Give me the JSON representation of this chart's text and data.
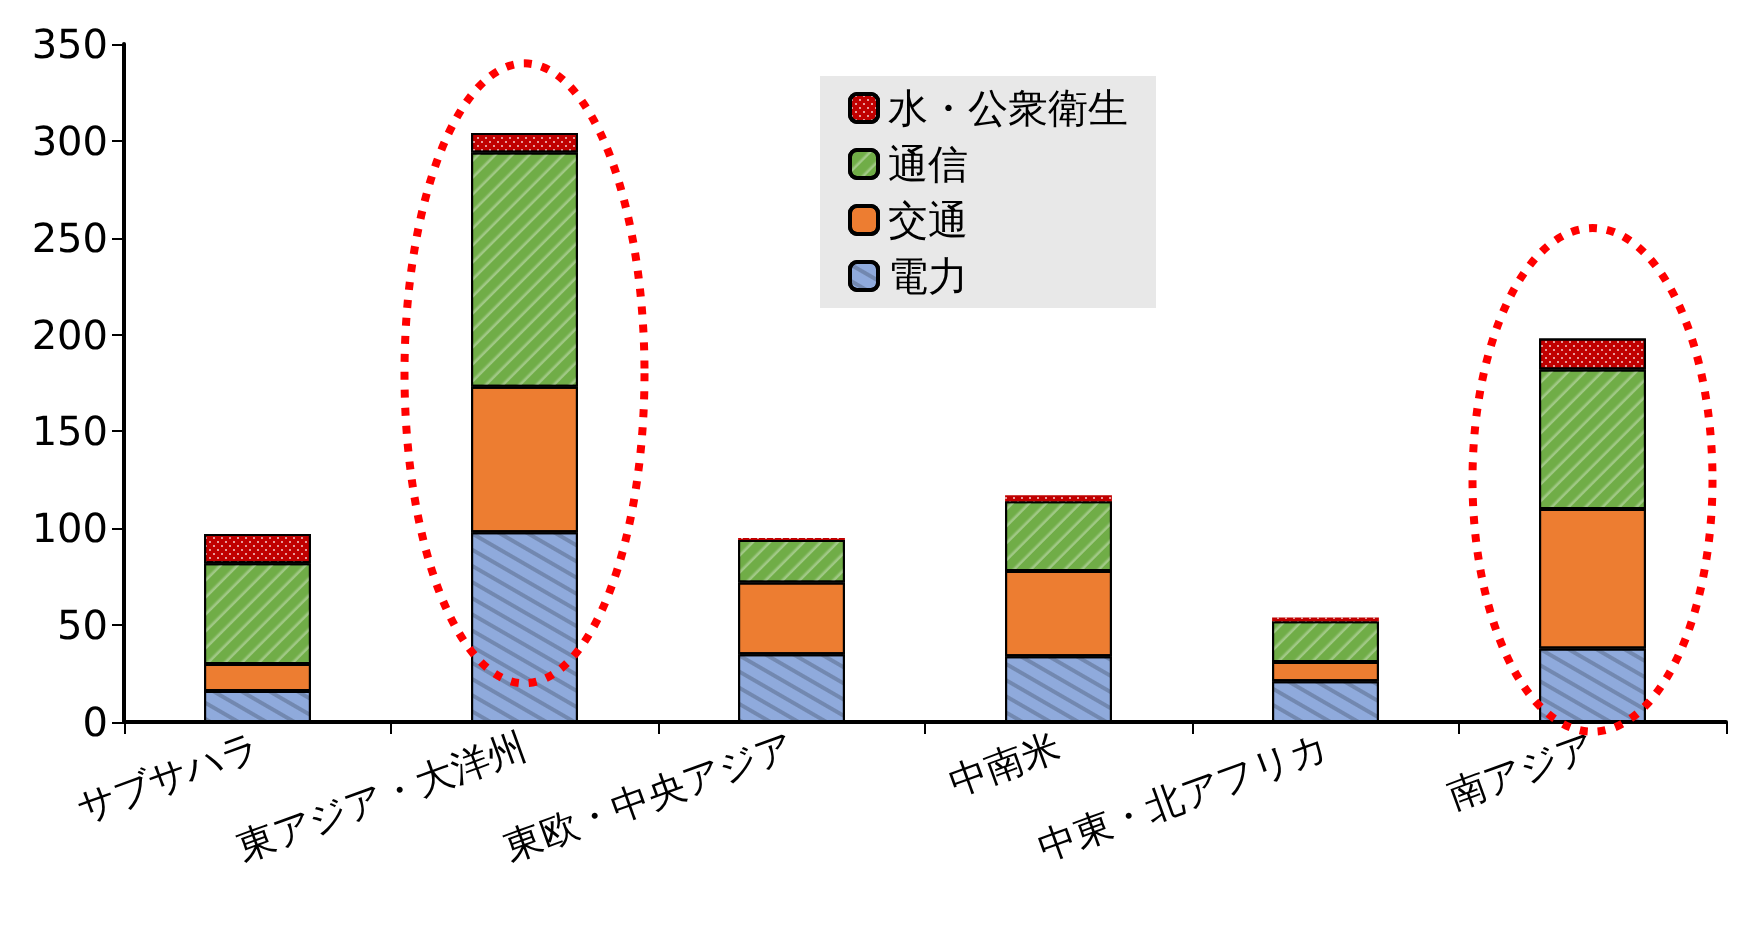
{
  "chart_data": {
    "type": "bar",
    "stacked": true,
    "categories": [
      "サブサハラ",
      "東アジア・大洋州",
      "東欧・中央アジア",
      "中南米",
      "中東・北アフリカ",
      "南アジア"
    ],
    "series": [
      {
        "name": "電力",
        "color": "#8faadc",
        "values": [
          16,
          98,
          35,
          34,
          21,
          38
        ]
      },
      {
        "name": "交通",
        "color": "#ed7d31",
        "values": [
          14,
          75,
          37,
          44,
          10,
          72
        ]
      },
      {
        "name": "通信",
        "color": "#70ad47",
        "values": [
          52,
          121,
          22,
          36,
          21,
          72
        ]
      },
      {
        "name": "水・公衆衛生",
        "color": "#c00000",
        "values": [
          15,
          10,
          1,
          3,
          2,
          16
        ]
      }
    ],
    "ylim": [
      0,
      350
    ],
    "yticks": [
      0,
      50,
      100,
      150,
      200,
      250,
      300,
      350
    ],
    "grid": false,
    "legend": "top"
  }
}
